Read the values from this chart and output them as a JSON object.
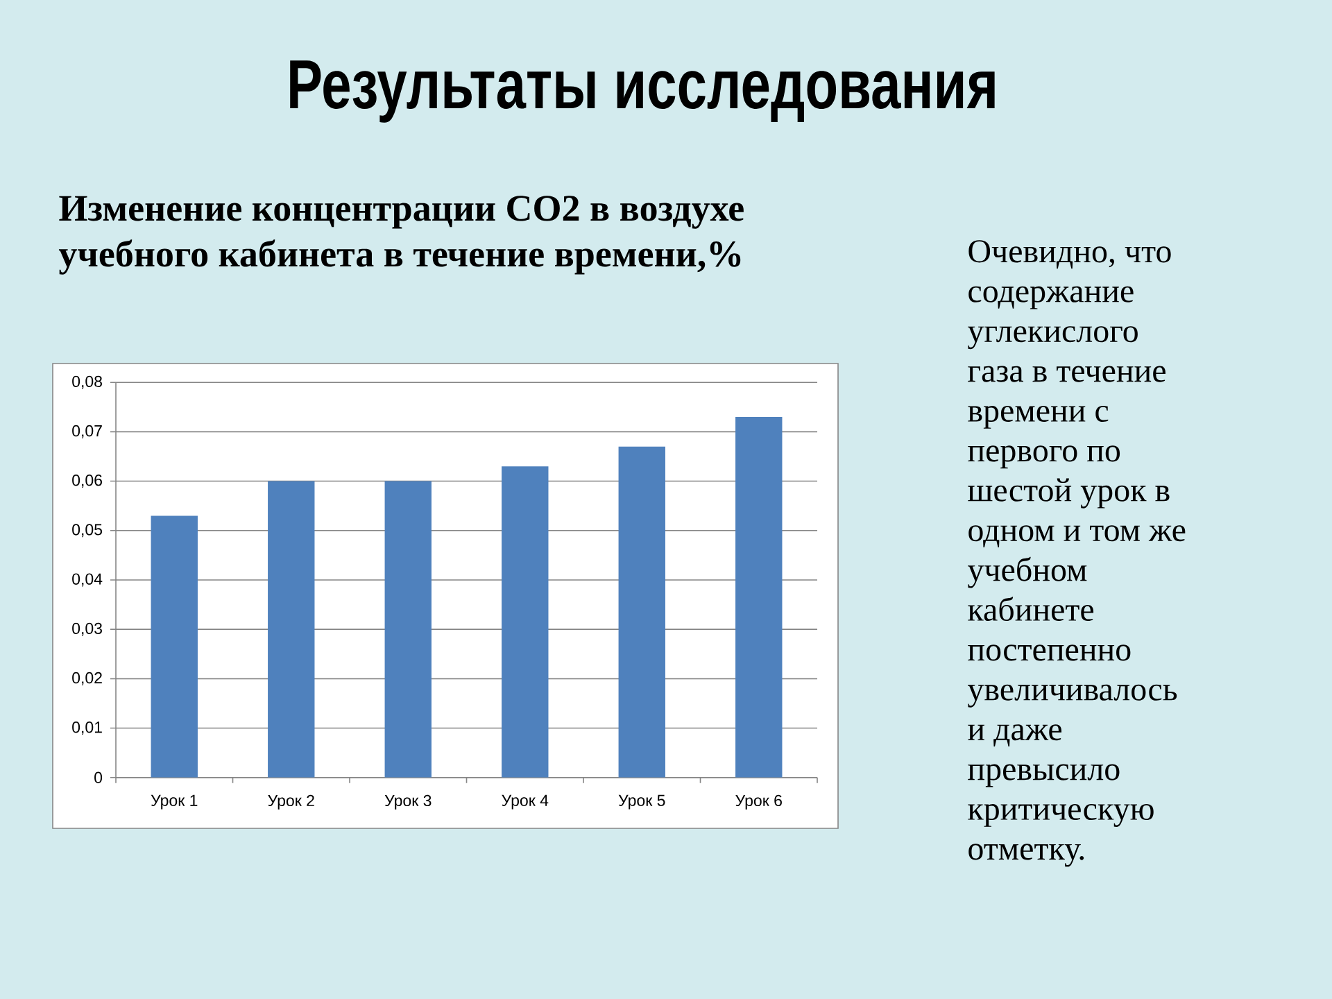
{
  "chart_data": {
    "type": "bar",
    "title": "Результаты исследования",
    "subtitle": "Изменение концентрации CO2 в воздухе учебного кабинета в течение времени,%",
    "annotations": [
      "Очевидно, что содержание углекислого газа в течение времени с первого по шестой урок в одном и том же учебном кабинете постепенно увеличивалось и даже превысило критическую отметку."
    ],
    "categories": [
      "Урок 1",
      "Урок 2",
      "Урок 3",
      "Урок 4",
      "Урок 5",
      "Урок 6"
    ],
    "values": [
      0.053,
      0.06,
      0.06,
      0.063,
      0.067,
      0.073
    ],
    "color": "#4f81bd",
    "ylim": [
      0,
      0.08
    ],
    "yticks": [
      0,
      {
        "value": 0.01,
        "label": "0,01"
      },
      {
        "value": 0.02,
        "label": "0,02"
      },
      {
        "value": 0.03,
        "label": "0,03"
      },
      {
        "value": 0.04,
        "label": "0,04"
      },
      {
        "value": 0.05,
        "label": "0,05"
      },
      {
        "value": 0.06,
        "label": "0,06"
      },
      {
        "value": 0.07,
        "label": "0,07"
      },
      {
        "value": 0.08,
        "label": "0,08"
      }
    ],
    "grid": "y"
  }
}
